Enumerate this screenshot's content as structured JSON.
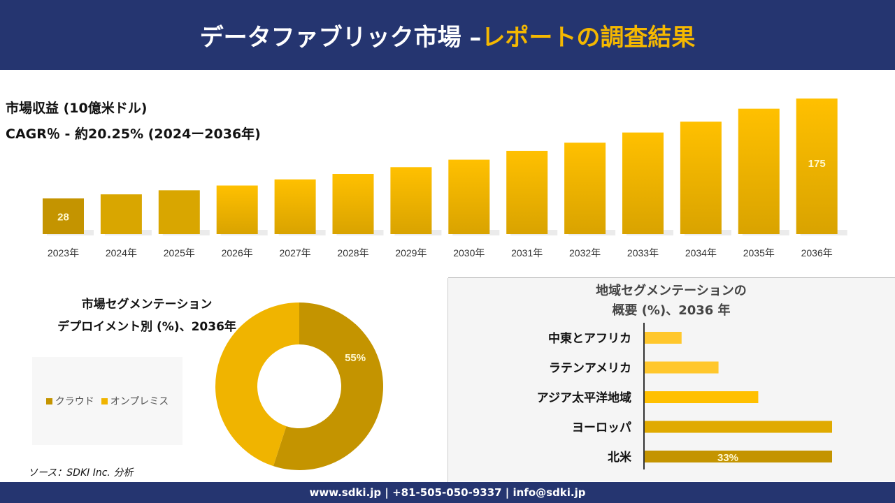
{
  "header": {
    "title_main": "データファブリック市場 –",
    "title_accent": "レポートの調査結果"
  },
  "revenue_label": "市場収益 (10億米ドル)",
  "cagr_label": "CAGR％ - 約20.25% (2024ー2036年)",
  "colors": {
    "header_bg": "#253570",
    "accent": "#f5b800",
    "bar_dark": "#c49400",
    "bar_mid": "#dba800",
    "bar_light": "#ffc000"
  },
  "chart_data": [
    {
      "type": "bar",
      "categories": [
        "2023年",
        "2024年",
        "2025年",
        "2026年",
        "2027年",
        "2028年",
        "2029年",
        "2030年",
        "2031年",
        "2032年",
        "2033年",
        "2034年",
        "2035年",
        "2036年"
      ],
      "values": [
        28,
        34,
        40,
        47,
        56,
        64,
        74,
        85,
        98,
        110,
        125,
        141,
        160,
        175
      ],
      "data_labels": {
        "0": "28",
        "13": "175"
      }
    },
    {
      "type": "pie",
      "title": "市場セグメンテーション デプロイメント別 (%)、2036年",
      "title_line1": "市場セグメンテーション",
      "title_line2": "デプロイメント別 (%)、2036年",
      "categories": [
        "クラウド",
        "オンプレミス"
      ],
      "values": [
        55,
        45
      ],
      "colors": [
        "#c49400",
        "#f0b400"
      ],
      "data_labels": [
        "55%",
        ""
      ],
      "legend": "left"
    },
    {
      "type": "bar",
      "orientation": "horizontal",
      "title_line1": "地域セグメンテーションの",
      "title_line2": "概要 (%)、2036 年",
      "categories": [
        "中東とアフリカ",
        "ラテンアメリカ",
        "アジア太平洋地域",
        "ヨーロッパ",
        "北米"
      ],
      "values": [
        6.5,
        13,
        20,
        33,
        33
      ],
      "colors": [
        "#ffc72c",
        "#ffc72c",
        "#ffc000",
        "#e0aa00",
        "#c49400"
      ],
      "data_labels": [
        "",
        "",
        "",
        "",
        "33%"
      ]
    }
  ],
  "source": "ソース：SDKI Inc. 分析",
  "footer": "www.sdki.jp | +81-505-050-9337 | info@sdki.jp"
}
